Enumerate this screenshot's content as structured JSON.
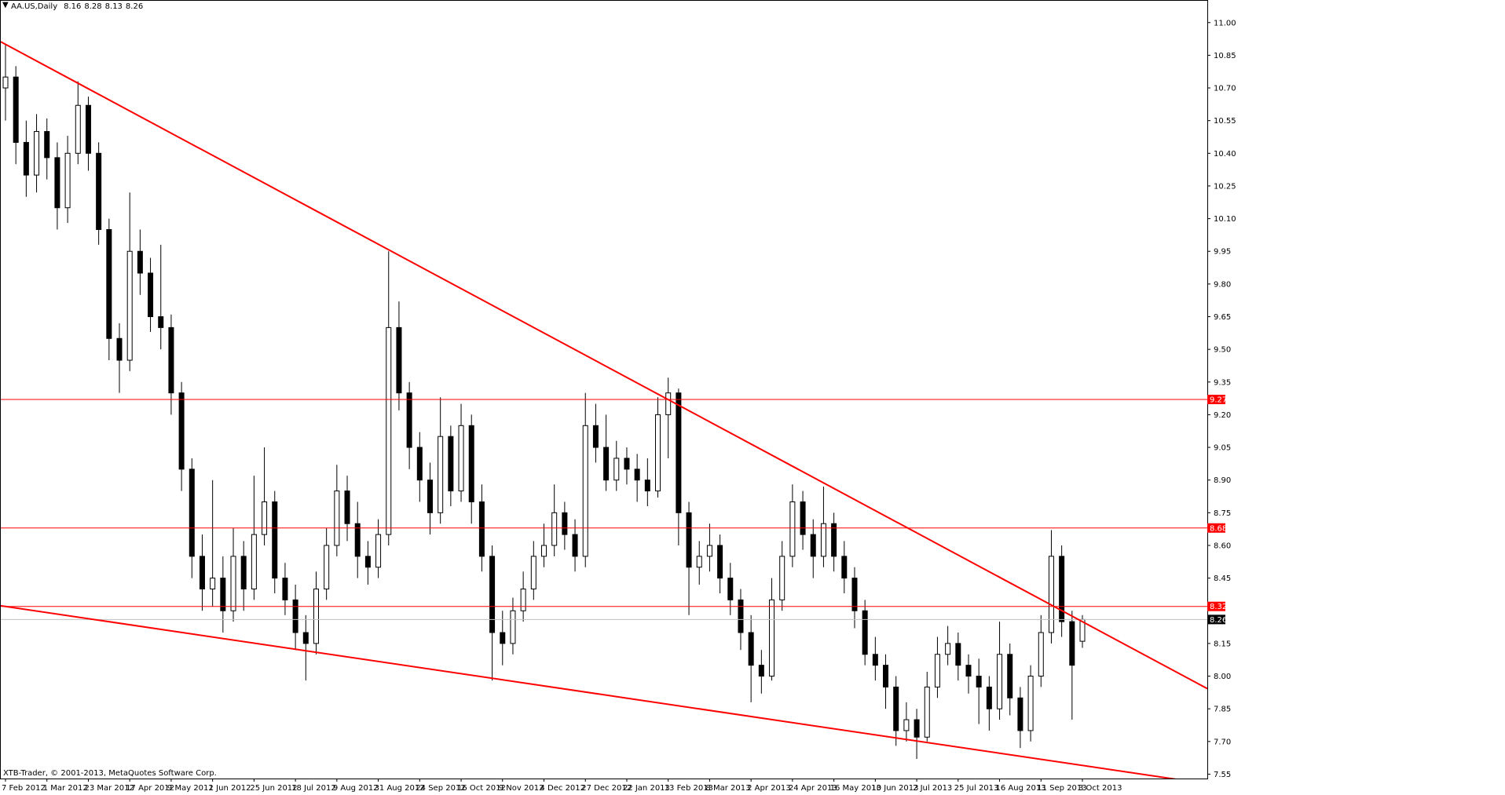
{
  "chart_data": {
    "type": "candlestick",
    "title": "AA.US,Daily",
    "header_ohlc": [
      8.16,
      8.28,
      8.13,
      8.26
    ],
    "footer": "XTB-Trader, © 2001-2013, MetaQuotes Software Corp.",
    "categories": [
      "7 Feb 2012",
      null,
      null,
      null,
      "1 Mar 2012",
      null,
      null,
      null,
      "23 Mar 2012",
      null,
      null,
      null,
      "17 Apr 2012",
      null,
      null,
      null,
      "9 May 2012",
      null,
      null,
      null,
      "1 Jun 2012",
      null,
      null,
      null,
      "25 Jun 2012",
      null,
      null,
      null,
      "18 Jul 2012",
      null,
      null,
      null,
      "9 Aug 2012",
      null,
      null,
      null,
      "31 Aug 2012",
      null,
      null,
      null,
      "24 Sep 2012",
      null,
      null,
      null,
      "16 Oct 2012",
      null,
      null,
      null,
      "9 Nov 2012",
      null,
      null,
      null,
      "4 Dec 2012",
      null,
      null,
      null,
      "27 Dec 2012",
      null,
      null,
      null,
      "22 Jan 2013",
      null,
      null,
      null,
      "13 Feb 2013",
      null,
      null,
      null,
      "8 Mar 2013",
      null,
      null,
      null,
      "2 Apr 2013",
      null,
      null,
      null,
      "24 Apr 2013",
      null,
      null,
      null,
      "16 May 2013",
      null,
      null,
      null,
      "10 Jun 2013",
      null,
      null,
      null,
      "2 Jul 2013",
      null,
      null,
      null,
      "25 Jul 2013",
      null,
      null,
      null,
      "16 Aug 2013",
      null,
      null,
      null,
      "11 Sep 2013",
      null,
      null,
      null,
      "3 Oct 2013"
    ],
    "open": [
      10.7,
      10.75,
      10.45,
      10.3,
      10.5,
      10.38,
      10.15,
      10.4,
      10.62,
      10.4,
      10.05,
      9.55,
      9.45,
      9.95,
      9.85,
      9.65,
      9.6,
      9.3,
      8.95,
      8.55,
      8.4,
      8.45,
      8.3,
      8.55,
      8.4,
      8.65,
      8.8,
      8.45,
      8.35,
      8.2,
      8.15,
      8.4,
      8.6,
      8.85,
      8.7,
      8.55,
      8.5,
      8.65,
      9.6,
      9.3,
      9.05,
      8.9,
      8.75,
      9.1,
      8.85,
      9.15,
      8.8,
      8.55,
      8.2,
      8.15,
      8.3,
      8.4,
      8.55,
      8.6,
      8.75,
      8.65,
      8.55,
      9.15,
      9.05,
      8.9,
      9.0,
      8.95,
      8.9,
      8.85,
      9.2,
      9.3,
      8.75,
      8.5,
      8.55,
      8.6,
      8.45,
      8.35,
      8.2,
      8.05,
      8.0,
      8.35,
      8.55,
      8.8,
      8.65,
      8.55,
      8.7,
      8.55,
      8.45,
      8.3,
      8.1,
      8.05,
      7.95,
      7.75,
      7.8,
      7.72,
      7.95,
      8.1,
      8.15,
      8.05,
      8.0,
      7.95,
      7.85,
      8.1,
      7.9,
      7.75,
      8.0,
      8.2,
      8.55,
      8.25,
      8.16
    ],
    "high": [
      10.9,
      10.8,
      10.55,
      10.58,
      10.56,
      10.45,
      10.48,
      10.73,
      10.66,
      10.45,
      10.1,
      9.62,
      10.22,
      10.05,
      9.92,
      9.98,
      9.66,
      9.35,
      9.0,
      8.65,
      8.9,
      8.55,
      8.68,
      8.62,
      8.92,
      9.05,
      8.85,
      8.52,
      8.42,
      8.28,
      8.48,
      8.68,
      8.97,
      8.92,
      8.8,
      8.62,
      8.72,
      9.95,
      9.72,
      9.35,
      9.12,
      8.98,
      9.28,
      9.15,
      9.25,
      9.2,
      8.88,
      8.6,
      8.3,
      8.36,
      8.48,
      8.62,
      8.7,
      8.88,
      8.8,
      8.72,
      9.3,
      9.25,
      9.2,
      9.08,
      9.05,
      9.02,
      9.0,
      9.28,
      9.37,
      9.32,
      8.8,
      8.62,
      8.7,
      8.65,
      8.52,
      8.4,
      8.28,
      8.12,
      8.45,
      8.62,
      8.88,
      8.85,
      8.72,
      8.87,
      8.75,
      8.62,
      8.5,
      8.35,
      8.18,
      8.1,
      8.0,
      7.88,
      7.85,
      8.02,
      8.18,
      8.23,
      8.2,
      8.1,
      8.08,
      8.0,
      8.25,
      8.15,
      7.95,
      8.05,
      8.28,
      8.67,
      8.6,
      8.3,
      8.28
    ],
    "low": [
      10.55,
      10.35,
      10.2,
      10.22,
      10.28,
      10.05,
      10.08,
      10.35,
      10.32,
      9.98,
      9.45,
      9.3,
      9.4,
      9.75,
      9.58,
      9.5,
      9.2,
      8.85,
      8.45,
      8.3,
      8.32,
      8.2,
      8.25,
      8.3,
      8.35,
      8.6,
      8.38,
      8.28,
      8.12,
      7.98,
      8.1,
      8.35,
      8.55,
      8.62,
      8.45,
      8.42,
      8.45,
      8.6,
      9.22,
      8.95,
      8.8,
      8.65,
      8.7,
      8.78,
      8.8,
      8.7,
      8.48,
      7.98,
      8.05,
      8.1,
      8.25,
      8.35,
      8.5,
      8.55,
      8.58,
      8.48,
      8.5,
      8.98,
      8.85,
      8.85,
      8.88,
      8.8,
      8.78,
      8.82,
      9.0,
      8.6,
      8.28,
      8.42,
      8.48,
      8.38,
      8.28,
      8.12,
      7.88,
      7.92,
      7.98,
      8.3,
      8.5,
      8.58,
      8.45,
      8.5,
      8.48,
      8.38,
      8.22,
      8.05,
      7.98,
      7.85,
      7.68,
      7.7,
      7.62,
      7.7,
      7.9,
      8.05,
      7.98,
      7.92,
      7.78,
      7.75,
      7.8,
      7.82,
      7.67,
      7.7,
      7.95,
      8.15,
      8.18,
      7.8,
      8.13
    ],
    "close": [
      10.75,
      10.45,
      10.3,
      10.5,
      10.38,
      10.15,
      10.4,
      10.62,
      10.4,
      10.05,
      9.55,
      9.45,
      9.95,
      9.85,
      9.65,
      9.6,
      9.3,
      8.95,
      8.55,
      8.4,
      8.45,
      8.3,
      8.55,
      8.4,
      8.65,
      8.8,
      8.45,
      8.35,
      8.2,
      8.15,
      8.4,
      8.6,
      8.85,
      8.7,
      8.55,
      8.5,
      8.65,
      9.6,
      9.3,
      9.05,
      8.9,
      8.75,
      9.1,
      8.85,
      9.15,
      8.8,
      8.55,
      8.2,
      8.15,
      8.3,
      8.4,
      8.55,
      8.6,
      8.75,
      8.65,
      8.55,
      9.15,
      9.05,
      8.9,
      9.0,
      8.95,
      8.9,
      8.85,
      9.2,
      9.3,
      8.75,
      8.5,
      8.55,
      8.6,
      8.45,
      8.35,
      8.2,
      8.05,
      8.0,
      8.35,
      8.55,
      8.8,
      8.65,
      8.55,
      8.7,
      8.55,
      8.45,
      8.3,
      8.1,
      8.05,
      7.95,
      7.75,
      7.8,
      7.72,
      7.95,
      8.1,
      8.15,
      8.05,
      8.0,
      7.95,
      7.85,
      8.1,
      7.9,
      7.75,
      8.0,
      8.2,
      8.55,
      8.25,
      8.05,
      8.26
    ],
    "ylim": [
      7.53,
      11.1
    ],
    "yticks": [
      {
        "value": 11,
        "label": "11.00"
      },
      10.85,
      {
        "value": 10.7,
        "label": "10.70"
      },
      10.55,
      {
        "value": 10.4,
        "label": "10.40"
      },
      10.25,
      {
        "value": 10.1,
        "label": "10.10"
      },
      9.95,
      {
        "value": 9.8,
        "label": "9.80"
      },
      9.65,
      {
        "value": 9.5,
        "label": "9.50"
      },
      9.35,
      {
        "value": 9.2,
        "label": "9.20"
      },
      9.05,
      {
        "value": 8.9,
        "label": "8.90"
      },
      8.75,
      {
        "value": 8.6,
        "label": "8.60"
      },
      8.45,
      8.15,
      {
        "value": 8,
        "label": "8.00"
      },
      7.85,
      {
        "value": 7.7,
        "label": "7.70"
      },
      7.55
    ],
    "hlines": [
      9.27,
      8.68,
      8.32
    ],
    "hline_color": "#ff0000",
    "last_price": 8.26,
    "trendlines": [
      {
        "color": "#ff0000",
        "values": [
          10.9,
          8.25
        ]
      },
      {
        "color": "#ff0000",
        "values": [
          8.32,
          7.59
        ]
      }
    ]
  }
}
